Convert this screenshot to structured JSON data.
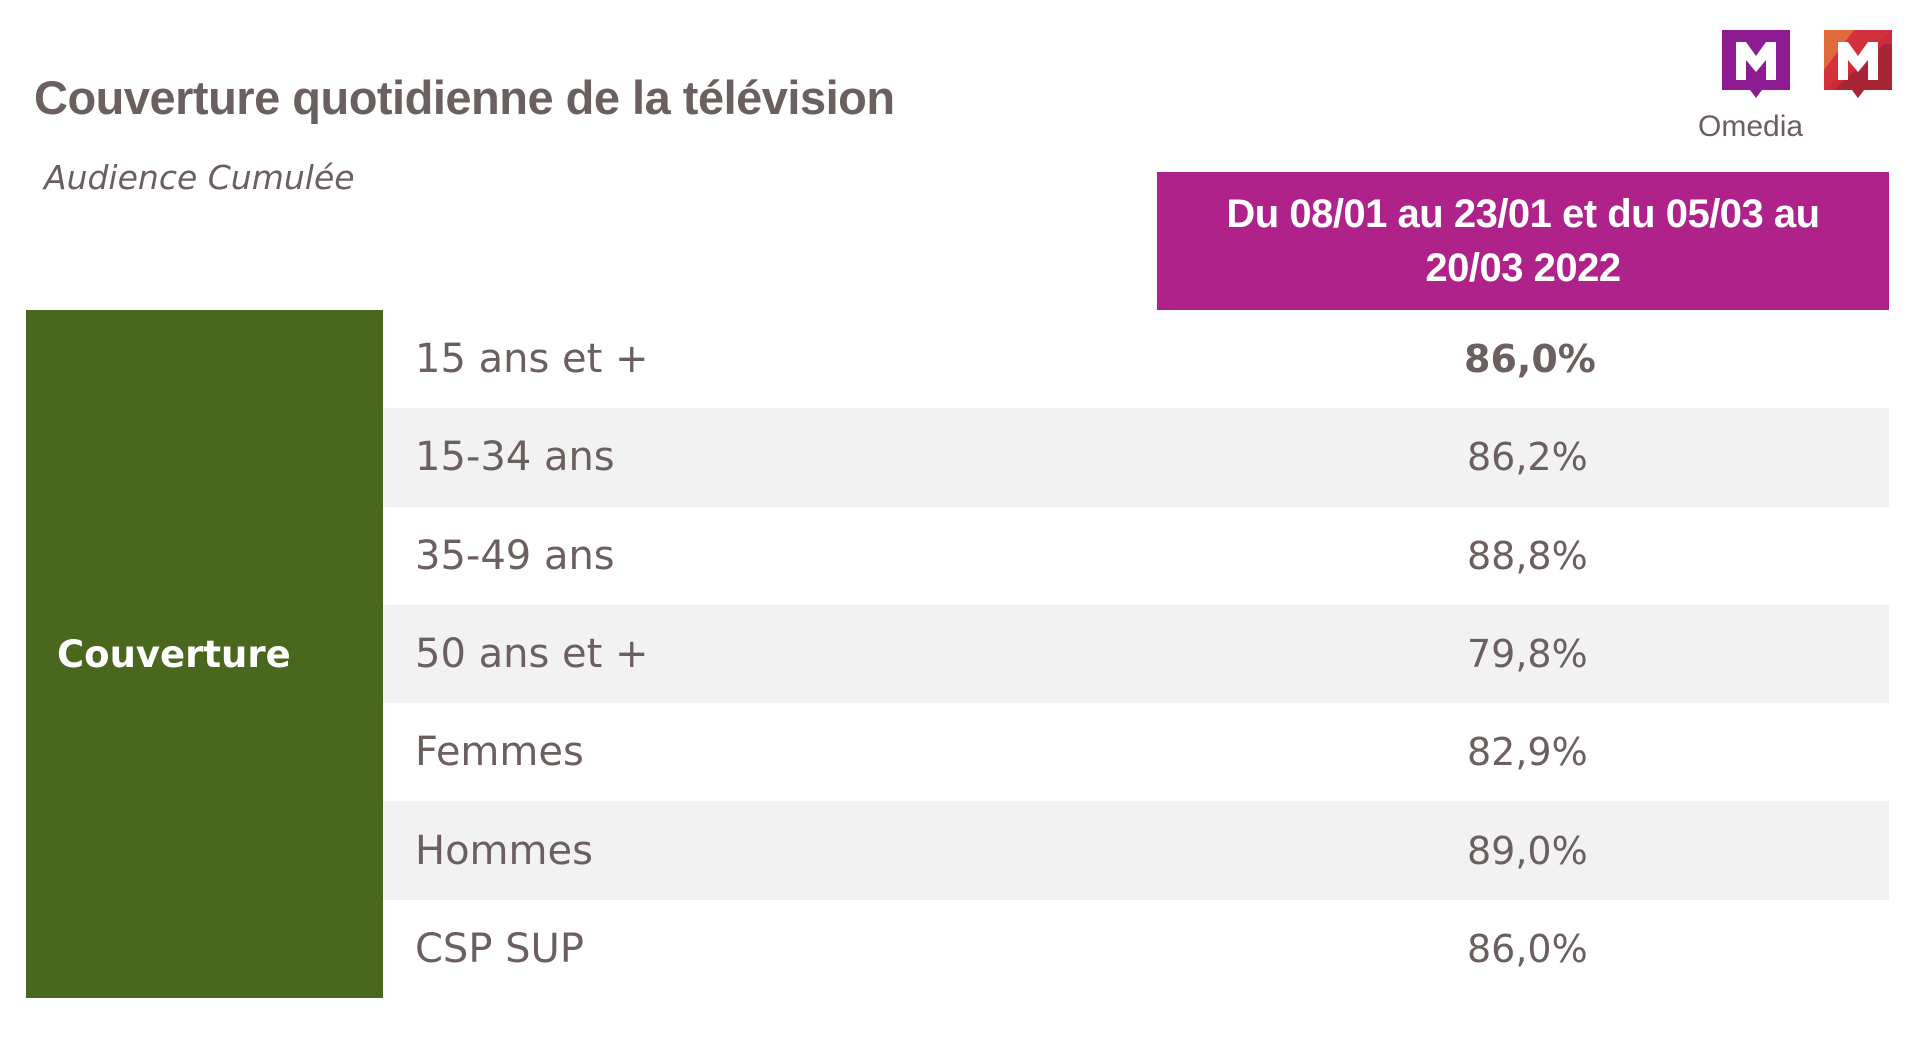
{
  "header": {
    "title": "Couverture quotidienne de la télévision",
    "subtitle": "Audience Cumulée"
  },
  "logos": {
    "brand_text": "Omedia",
    "purple_logo_letter": "M",
    "orange_logo_letter": "M",
    "colors": {
      "purple": "#8e1b91",
      "orange": "#e06a3a",
      "red": "#d2283c",
      "dark_red": "#a72534"
    }
  },
  "table": {
    "period_header": "Du 08/01 au 23/01 et du 05/03 au 20/03 2022",
    "group_label": "Couverture",
    "rows": [
      {
        "label": "15 ans et +",
        "value": "86,0%",
        "bold": true
      },
      {
        "label": "15-34 ans",
        "value": "86,2%",
        "bold": false
      },
      {
        "label": "35-49 ans",
        "value": "88,8%",
        "bold": false
      },
      {
        "label": "50 ans et +",
        "value": "79,8%",
        "bold": false
      },
      {
        "label": "Femmes",
        "value": "82,9%",
        "bold": false
      },
      {
        "label": "Hommes",
        "value": "89,0%",
        "bold": false
      },
      {
        "label": "CSP SUP",
        "value": "86,0%",
        "bold": false
      }
    ]
  },
  "colors": {
    "header_bg": "#ae228a",
    "group_bg": "#4a671e",
    "alt_row_bg": "#f2f2f2",
    "text": "#6b5f5f"
  }
}
